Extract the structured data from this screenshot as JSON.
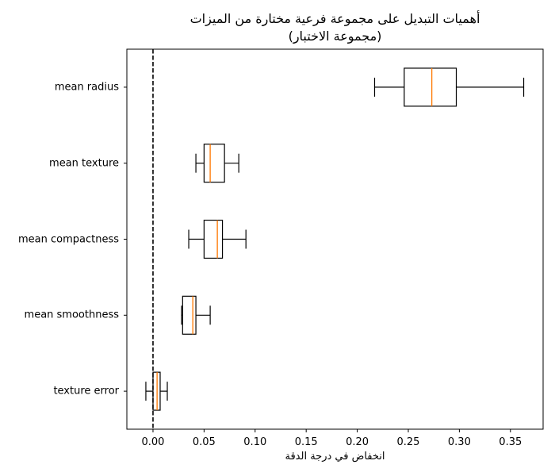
{
  "chart_data": {
    "type": "boxplot",
    "orientation": "horizontal",
    "title": "أهميات التبديل على مجموعة فرعية مختارة من الميزات",
    "subtitle": "(مجموعة الاختبار)",
    "xlabel": "انخفاض في درجة الدقة",
    "ylabel": "",
    "xlim": [
      -0.0256,
      0.382
    ],
    "xticks": [
      0.0,
      0.05,
      0.1,
      0.15,
      0.2,
      0.25,
      0.3,
      0.35
    ],
    "xtick_labels": [
      "0.00",
      "0.05",
      "0.10",
      "0.15",
      "0.20",
      "0.25",
      "0.30",
      "0.35"
    ],
    "grid": false,
    "reference_line": {
      "x": 0.0,
      "style": "dashed",
      "color": "#000000"
    },
    "categories": [
      "mean radius",
      "mean texture",
      "mean compactness",
      "mean smoothness",
      "texture error"
    ],
    "series": [
      {
        "name": "mean radius",
        "whislo": 0.217,
        "q1": 0.246,
        "med": 0.273,
        "q3": 0.297,
        "whishi": 0.363
      },
      {
        "name": "mean texture",
        "whislo": 0.042,
        "q1": 0.05,
        "med": 0.056,
        "q3": 0.07,
        "whishi": 0.084
      },
      {
        "name": "mean compactness",
        "whislo": 0.035,
        "q1": 0.05,
        "med": 0.063,
        "q3": 0.068,
        "whishi": 0.091
      },
      {
        "name": "mean smoothness",
        "whislo": 0.028,
        "q1": 0.029,
        "med": 0.039,
        "q3": 0.042,
        "whishi": 0.056
      },
      {
        "name": "texture error",
        "whislo": -0.007,
        "q1": 0.0,
        "med": 0.004,
        "q3": 0.007,
        "whishi": 0.014
      }
    ],
    "colors": {
      "box": "#000000",
      "median": "#ff7f0e",
      "axes": "#000000"
    }
  }
}
